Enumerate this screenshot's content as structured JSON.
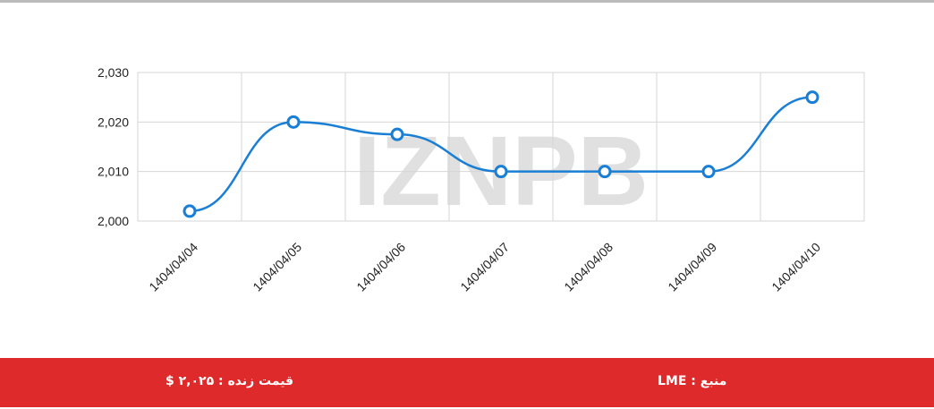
{
  "chart_data": {
    "type": "line",
    "categories": [
      "1404/04/04",
      "1404/04/05",
      "1404/04/06",
      "1404/04/07",
      "1404/04/08",
      "1404/04/09",
      "1404/04/10"
    ],
    "values": [
      2002,
      2020,
      2017.5,
      2010,
      2010,
      2010,
      2025
    ],
    "color": "#1a7fd4",
    "ylim": [
      2000,
      2030
    ],
    "yticks": [
      {
        "value": 2000,
        "label": "2,000"
      },
      {
        "value": 2010,
        "label": "2,010"
      },
      {
        "value": 2020,
        "label": "2,020"
      },
      {
        "value": 2030,
        "label": "2,030"
      }
    ],
    "grid": true
  },
  "watermark": "IZNPB",
  "footer": {
    "live_price": "قیمت زنده : ۲,۰۲۵ $",
    "source": "منبع : LME"
  }
}
